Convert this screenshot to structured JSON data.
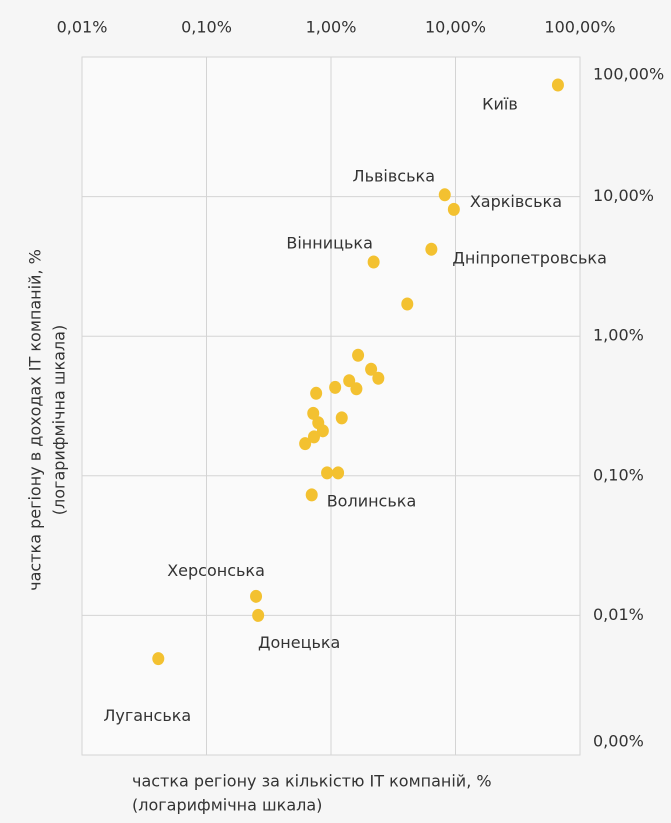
{
  "chart_data": {
    "type": "scatter",
    "x_title": [
      "частка регіону за кількістю IT компаній, %",
      "(логарифмічна шкала)"
    ],
    "y_title": [
      "частка регіону в доходах IT компаній, %",
      "(логарифмічна шкала)"
    ],
    "x_log": true,
    "y_log": true,
    "grid": true,
    "color": "#f3c130",
    "xlim": [
      0.01,
      100
    ],
    "ylim": [
      0.001,
      100
    ],
    "xticks": [
      {
        "value": 0.01,
        "label": "0,01%"
      },
      {
        "value": 0.1,
        "label": "0,10%"
      },
      {
        "value": 1,
        "label": "1,00%"
      },
      {
        "value": 10,
        "label": "10,00%"
      },
      {
        "value": 100,
        "label": "100,00%"
      }
    ],
    "yticks": [
      {
        "value": 0.001,
        "label": "0,00%"
      },
      {
        "value": 0.01,
        "label": "0,01%"
      },
      {
        "value": 0.1,
        "label": "0,10%"
      },
      {
        "value": 1,
        "label": "1,00%"
      },
      {
        "value": 10,
        "label": "10,00%"
      },
      {
        "value": 100,
        "label": "100,00%"
      }
    ],
    "x": [
      66.5,
      8.2,
      9.7,
      6.4,
      2.2,
      4.1,
      1.65,
      2.1,
      2.4,
      1.4,
      1.6,
      1.08,
      0.76,
      0.72,
      1.22,
      0.79,
      0.86,
      0.73,
      0.62,
      0.93,
      1.14,
      0.7,
      0.25,
      0.26,
      0.041
    ],
    "values": [
      63,
      10.3,
      8.1,
      4.2,
      3.4,
      1.7,
      0.73,
      0.58,
      0.5,
      0.48,
      0.42,
      0.43,
      0.39,
      0.28,
      0.26,
      0.24,
      0.21,
      0.19,
      0.17,
      0.105,
      0.105,
      0.073,
      0.0137,
      0.01,
      0.0049
    ],
    "labels": [
      "Київ",
      "Львівська",
      "Харківська",
      "Дніпропетровська",
      "Вінницька",
      null,
      null,
      null,
      null,
      null,
      null,
      null,
      null,
      null,
      null,
      null,
      null,
      null,
      null,
      null,
      null,
      "Волинська",
      "Херсонська",
      "Донецька",
      "Луганська"
    ]
  }
}
